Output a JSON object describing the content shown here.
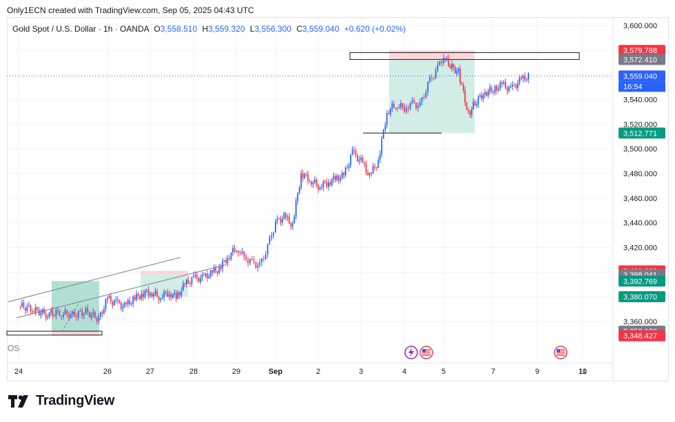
{
  "header": {
    "credit": "Only1ECN created with TradingView.com, Sep 05, 2025 04:43 UTC"
  },
  "symbol": {
    "name": "Gold Spot / U.S. Dollar · 1h · OANDA",
    "o_label": "O",
    "o": "3,558.510",
    "h_label": "H",
    "h": "3,559.320",
    "l_label": "L",
    "l": "3,556.300",
    "c_label": "C",
    "c": "3,559.040",
    "change": "+0.620 (+0.02%)"
  },
  "countdown": "16:54",
  "left_partial_label": "OS",
  "logo_text": "TradingView",
  "colors": {
    "up": "#2962ff",
    "down": "#f23645",
    "profit_zone": "#d1ede6",
    "loss_zone": "#fbd5d8",
    "profit_box": "#b2dfd4",
    "axis_text": "#131722",
    "grid": "#f0f3fa"
  },
  "icons": {
    "event1": "lightning-icon",
    "event2": "us-flag-icon",
    "event3": "us-flag-icon"
  },
  "chart_data": {
    "type": "candlestick",
    "title": "",
    "xlabel": "",
    "ylabel": "",
    "ylim": [
      3338,
      3608
    ],
    "y_ticks": [
      "3,600.000",
      "3,580.000",
      "3,560.000",
      "3,540.000",
      "3,520.000",
      "3,500.000",
      "3,480.000",
      "3,460.000",
      "3,440.000",
      "3,420.000",
      "3,400.000",
      "3,380.000",
      "3,360.000"
    ],
    "y_tick_values": [
      3600,
      3580,
      3560,
      3540,
      3520,
      3500,
      3480,
      3460,
      3440,
      3420,
      3400,
      3380,
      3360
    ],
    "x_ticks": [
      {
        "label": "24",
        "t": 0
      },
      {
        "label": "26",
        "t": 2
      },
      {
        "label": "27",
        "t": 3
      },
      {
        "label": "28",
        "t": 4
      },
      {
        "label": "29",
        "t": 5
      },
      {
        "label": "Sep",
        "t": 6
      },
      {
        "label": "2",
        "t": 7
      },
      {
        "label": "3",
        "t": 8
      },
      {
        "label": "4",
        "t": 9
      },
      {
        "label": "5",
        "t": 10
      },
      {
        "label": "7",
        "t": 11
      },
      {
        "label": "9",
        "t": 12
      },
      {
        "label": "10",
        "t": 13
      },
      {
        "label": "11",
        "t": 14
      }
    ],
    "price_labels": [
      {
        "text": "3,579.788",
        "value": 3579.788,
        "color": "#f23645"
      },
      {
        "text": "3,572.410",
        "value": 3572.41,
        "color": "#787b86"
      },
      {
        "text": "3,559.040",
        "value": 3559.04,
        "color": "#2962ff"
      },
      {
        "text": "3,512.771",
        "value": 3512.771,
        "color": "#089981"
      },
      {
        "text": "3,401.000",
        "value": 3401.0,
        "color": "#f23645"
      },
      {
        "text": "3,398.041",
        "value": 3398.041,
        "color": "#787b86"
      },
      {
        "text": "3,392.769",
        "value": 3392.769,
        "color": "#089981"
      },
      {
        "text": "3,380.070",
        "value": 3380.07,
        "color": "#089981"
      },
      {
        "text": "3,352.126",
        "value": 3352.126,
        "color": "#787b86"
      },
      {
        "text": "3,348.427",
        "value": 3348.427,
        "color": "#f23645"
      }
    ],
    "last_price": 3559.04,
    "series_close": [
      [
        0.0,
        3373
      ],
      [
        0.3,
        3370
      ],
      [
        0.6,
        3366
      ],
      [
        0.9,
        3367
      ],
      [
        1.2,
        3365
      ],
      [
        1.5,
        3368
      ],
      [
        1.8,
        3362
      ],
      [
        2.0,
        3378
      ],
      [
        2.2,
        3375
      ],
      [
        2.4,
        3372
      ],
      [
        2.6,
        3378
      ],
      [
        2.8,
        3382
      ],
      [
        3.0,
        3384
      ],
      [
        3.2,
        3380
      ],
      [
        3.4,
        3383
      ],
      [
        3.6,
        3380
      ],
      [
        3.8,
        3390
      ],
      [
        4.0,
        3395
      ],
      [
        4.2,
        3395
      ],
      [
        4.4,
        3399
      ],
      [
        4.6,
        3403
      ],
      [
        4.8,
        3412
      ],
      [
        5.0,
        3420
      ],
      [
        5.2,
        3412
      ],
      [
        5.4,
        3408
      ],
      [
        5.6,
        3405
      ],
      [
        5.8,
        3420
      ],
      [
        6.0,
        3440
      ],
      [
        6.2,
        3445
      ],
      [
        6.4,
        3438
      ],
      [
        6.6,
        3480
      ],
      [
        6.8,
        3475
      ],
      [
        7.0,
        3470
      ],
      [
        7.2,
        3472
      ],
      [
        7.4,
        3476
      ],
      [
        7.6,
        3478
      ],
      [
        7.8,
        3497
      ],
      [
        8.0,
        3490
      ],
      [
        8.2,
        3478
      ],
      [
        8.4,
        3490
      ],
      [
        8.6,
        3530
      ],
      [
        8.8,
        3536
      ],
      [
        9.0,
        3533
      ],
      [
        9.2,
        3537
      ],
      [
        9.4,
        3535
      ],
      [
        9.6,
        3552
      ],
      [
        9.8,
        3563
      ],
      [
        10.0,
        3575
      ],
      [
        10.1,
        3568
      ],
      [
        10.3,
        3562
      ],
      [
        10.5,
        3528
      ],
      [
        10.6,
        3535
      ],
      [
        10.8,
        3545
      ],
      [
        11.0,
        3548
      ],
      [
        11.2,
        3552
      ],
      [
        11.4,
        3548
      ],
      [
        11.6,
        3555
      ],
      [
        11.8,
        3559
      ]
    ]
  }
}
